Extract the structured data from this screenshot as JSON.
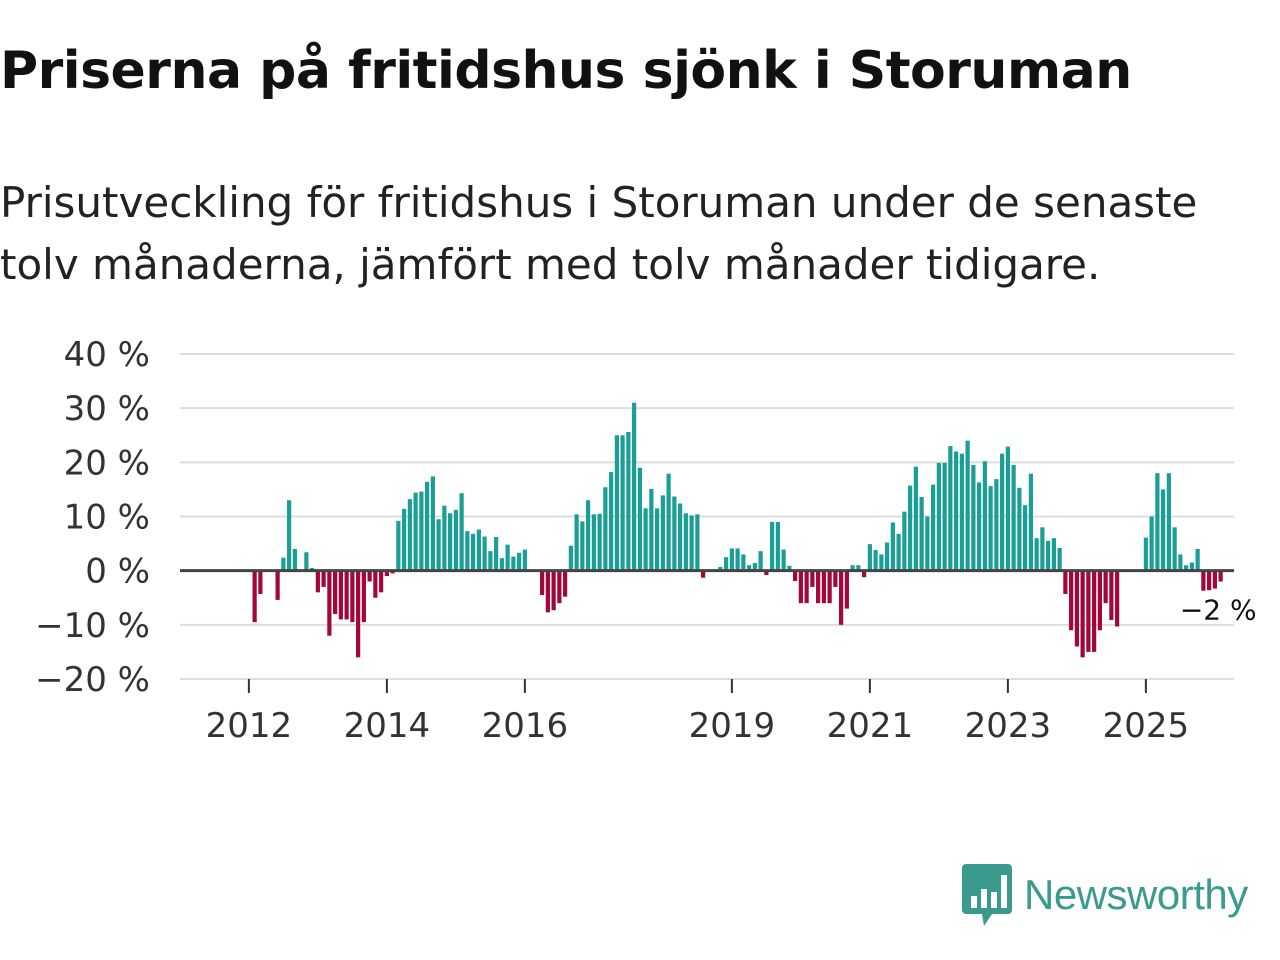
{
  "title": "Priserna på fritidshus sjönk i Storuman",
  "subtitle": "Prisutveckling för fritidshus i Storuman under de senaste tolv månaderna, jämfört med tolv månader tidigare.",
  "branding": {
    "logo_text": "Newsworthy",
    "logo_icon": "bar-chart-speech-bubble-icon"
  },
  "colors": {
    "positive": "#1a9f97",
    "negative": "#a3063a",
    "grid": "#dddddd",
    "zero_line": "#444444",
    "logo": "#3a9a8e"
  },
  "chart_data": {
    "type": "bar",
    "title": "Priserna på fritidshus sjönk i Storuman",
    "xlabel": "",
    "ylabel": "",
    "ylim": [
      -20,
      40
    ],
    "y_ticks": [
      40,
      30,
      20,
      10,
      0,
      -10,
      -20
    ],
    "y_tick_labels": [
      "40 %",
      "30 %",
      "20 %",
      "10 %",
      "0 %",
      "−10 %",
      "−20 %"
    ],
    "x_ticks": [
      {
        "label": "2012",
        "index": 8
      },
      {
        "label": "2014",
        "index": 32
      },
      {
        "label": "2016",
        "index": 56
      },
      {
        "label": "2019",
        "index": 92
      },
      {
        "label": "2021",
        "index": 116
      },
      {
        "label": "2023",
        "index": 140
      },
      {
        "label": "2025",
        "index": 164
      }
    ],
    "start": "2011-05",
    "frequency": "monthly",
    "series": [
      {
        "name": "Prisutveckling",
        "values": [
          0,
          0,
          0,
          0,
          0,
          0,
          0,
          0,
          0,
          -9.5,
          -4.3,
          0,
          0,
          -5.4,
          2.4,
          13,
          4,
          0,
          3.4,
          0.5,
          -4,
          -3,
          -12,
          -8,
          -9,
          -9,
          -9.5,
          -16,
          -9.5,
          -2,
          -5,
          -4,
          -1,
          -0.5,
          9.2,
          11.4,
          13.2,
          14.4,
          14.6,
          16.4,
          17.4,
          9.5,
          12,
          10.6,
          11.2,
          14.3,
          7.3,
          6.8,
          7.6,
          6.3,
          3.6,
          6.2,
          2.3,
          4.8,
          2.6,
          3.3,
          3.9,
          0,
          0,
          -4.5,
          -7.7,
          -7.3,
          -6,
          -4.8,
          4.6,
          10.4,
          9.1,
          13,
          10.4,
          10.5,
          15.4,
          18.2,
          25,
          25,
          25.6,
          31,
          19,
          11.5,
          15.1,
          11.5,
          13.9,
          17.9,
          13.7,
          12.4,
          10.6,
          10.2,
          10.4,
          -1.3,
          0,
          0,
          0.7,
          2.5,
          4.1,
          4.1,
          3,
          1,
          1.4,
          3.6,
          -0.8,
          9,
          9,
          3.9,
          0.9,
          -1.9,
          -6,
          -6,
          -3,
          -6,
          -6,
          -6,
          -3,
          -10,
          -7,
          1,
          1,
          -1.2,
          4.9,
          3.8,
          3,
          5.2,
          8.9,
          6.8,
          10.9,
          15.7,
          19.2,
          13.6,
          10,
          15.9,
          19.9,
          19.9,
          23,
          22,
          21.6,
          24,
          19.5,
          16.3,
          20.2,
          15.6,
          16.9,
          21.6,
          22.9,
          19.5,
          15.3,
          12.1,
          17.9,
          6,
          8,
          5.5,
          6,
          4.2,
          -4.3,
          -11,
          -14,
          -16,
          -15,
          -15,
          -11,
          -6,
          -9.1,
          -10.3,
          0,
          0,
          0,
          0,
          6.1,
          10,
          18,
          15,
          18,
          8,
          3,
          1,
          1.5,
          4,
          -3.7,
          -3.6,
          -3.3,
          -2
        ]
      }
    ],
    "annotations": [
      {
        "text": "−2 %",
        "target": "last-bar"
      }
    ]
  }
}
